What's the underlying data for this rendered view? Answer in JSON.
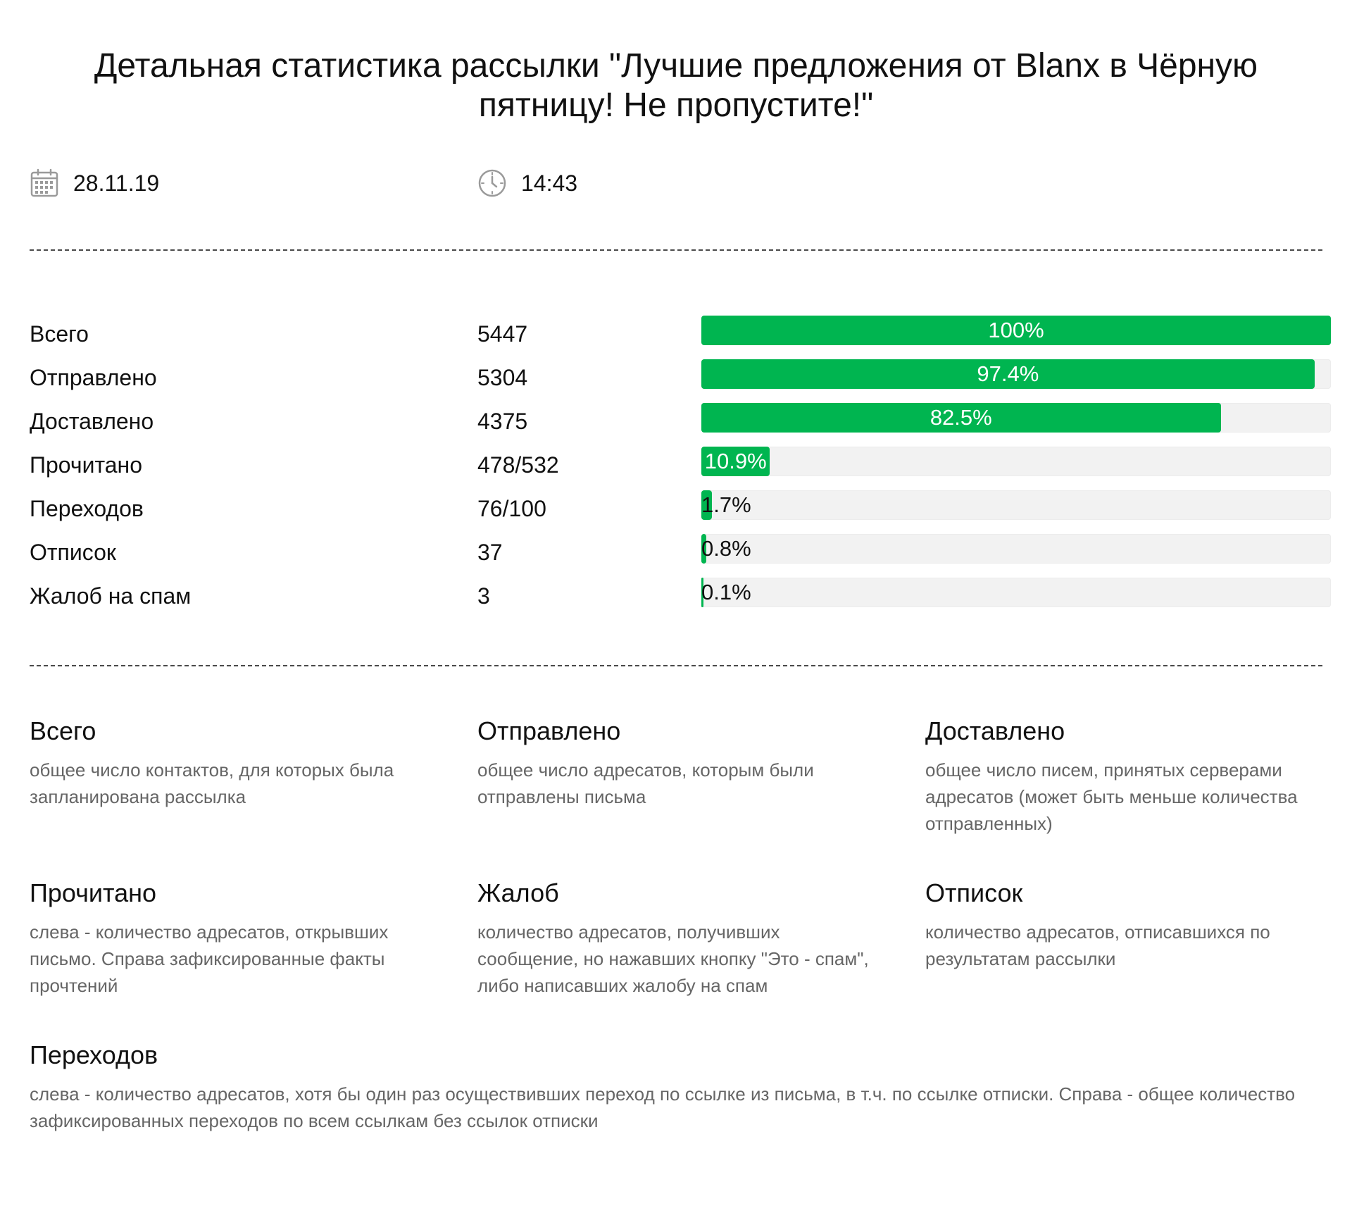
{
  "report": {
    "title": "Детальная статистика рассылки \"Лучшие предложения от Blanx в Чёрную пятницу! Не пропустите!\"",
    "date": "28.11.19",
    "time": "14:43",
    "icons": {
      "date": "calendar-icon",
      "time": "clock-icon"
    }
  },
  "colors": {
    "bar_fill": "#00b550",
    "bar_track": "#f2f2f2",
    "text_on_fill": "#ffffff",
    "text_on_track": "#111111"
  },
  "stats": [
    {
      "label": "Всего",
      "value": "5447",
      "percent_label": "100%",
      "percent": 100
    },
    {
      "label": "Отправлено",
      "value": "5304",
      "percent_label": "97.4%",
      "percent": 97.4
    },
    {
      "label": "Доставлено",
      "value": "4375",
      "percent_label": "82.5%",
      "percent": 82.5
    },
    {
      "label": "Прочитано",
      "value": "478/532",
      "percent_label": "10.9%",
      "percent": 10.9
    },
    {
      "label": "Переходов",
      "value": "76/100",
      "percent_label": "1.7%",
      "percent": 1.7
    },
    {
      "label": "Отписок",
      "value": "37",
      "percent_label": "0.8%",
      "percent": 0.8
    },
    {
      "label": "Жалоб на спам",
      "value": "3",
      "percent_label": "0.1%",
      "percent": 0.1
    }
  ],
  "definitions": [
    {
      "term": "Всего",
      "text": "общее число контактов, для которых была запланирована рассылка"
    },
    {
      "term": "Отправлено",
      "text": "общее число адресатов, которым были отправлены письма"
    },
    {
      "term": "Доставлено",
      "text": "общее число писем, принятых серверами адресатов (может быть меньше количества отправленных)"
    },
    {
      "term": "Прочитано",
      "text": "слева - количество адресатов, открывших письмо. Справа зафиксированные факты прочтений"
    },
    {
      "term": "Жалоб",
      "text": "количество адресатов, получивших сообщение, но нажавших кнопку \"Это - спам\", либо написавших жалобу на спам"
    },
    {
      "term": "Отписок",
      "text": "количество адресатов, отписавшихся по результатам рассылки"
    },
    {
      "term": "Переходов",
      "text": "слева - количество адресатов, хотя бы один раз осуществивших переход по ссылке из письма, в т.ч. по ссылке отписки. Справа - общее количество зафиксированных переходов по всем ссылкам без ссылок отписки"
    }
  ]
}
